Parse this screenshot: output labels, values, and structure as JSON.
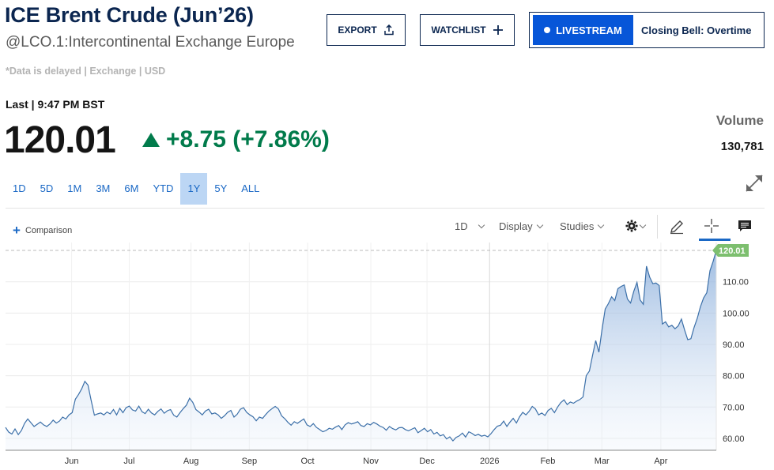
{
  "header": {
    "title": "ICE Brent Crude (Jun’26)",
    "subtitle": "@LCO.1:Intercontinental Exchange Europe",
    "delayed": "*Data is delayed | Exchange | USD"
  },
  "actions": {
    "export_label": "EXPORT",
    "watchlist_label": "WATCHLIST",
    "livestream_label": "LIVESTREAM",
    "live_show": "Closing Bell: Overtime"
  },
  "quote": {
    "last_label": "Last | 9:47 PM BST",
    "price": "120.01",
    "change": "+8.75 (+7.86%)",
    "volume_label": "Volume",
    "volume_value": "130,781"
  },
  "ranges": [
    {
      "label": "1D",
      "active": false
    },
    {
      "label": "5D",
      "active": false
    },
    {
      "label": "1M",
      "active": false
    },
    {
      "label": "3M",
      "active": false
    },
    {
      "label": "6M",
      "active": false
    },
    {
      "label": "YTD",
      "active": false
    },
    {
      "label": "1Y",
      "active": true
    },
    {
      "label": "5Y",
      "active": false
    },
    {
      "label": "ALL",
      "active": false
    }
  ],
  "toolbar": {
    "comparison_label": "Comparison",
    "interval_label": "1D",
    "display_label": "Display",
    "studies_label": "Studies"
  },
  "colors": {
    "accent": "#1a68c5",
    "positive": "#017b4b",
    "navy": "#0b2650",
    "line": "#3b6fa8",
    "price_tag": "#7dbf6f"
  },
  "chart_data": {
    "type": "area",
    "y_ticks": [
      "60.00",
      "70.00",
      "80.00",
      "90.00",
      "100.00",
      "110.00"
    ],
    "y_range": [
      56.2,
      120.01
    ],
    "x_ticks": [
      "Jun",
      "Jul",
      "Aug",
      "Sep",
      "Oct",
      "Nov",
      "Dec",
      "2026",
      "Feb",
      "Mar",
      "Apr"
    ],
    "last_value": "120.01",
    "series": [
      {
        "values": [
          63.5,
          62.0,
          61.4,
          63.0,
          61.2,
          62.5,
          64.8,
          66.2,
          65.0,
          63.8,
          64.5,
          65.2,
          64.3,
          63.8,
          64.6,
          65.8,
          64.9,
          65.5,
          66.8,
          66.2,
          67.5,
          68.2,
          72.5,
          74.0,
          75.8,
          78.2,
          77.0,
          72.0,
          67.4,
          67.8,
          68.1,
          67.5,
          68.4,
          67.8,
          69.2,
          67.5,
          69.6,
          68.2,
          69.8,
          70.3,
          69.1,
          68.7,
          70.3,
          68.5,
          67.9,
          69.3,
          68.1,
          67.5,
          68.6,
          69.4,
          68.0,
          68.8,
          69.2,
          67.4,
          66.8,
          68.2,
          69.5,
          70.6,
          72.8,
          71.5,
          69.2,
          68.4,
          67.5,
          68.7,
          69.3,
          67.8,
          68.1,
          67.5,
          66.4,
          67.2,
          68.3,
          68.9,
          66.8,
          67.7,
          69.3,
          69.8,
          68.3,
          67.5,
          66.9,
          65.6,
          66.8,
          66.4,
          67.6,
          68.7,
          69.5,
          70.2,
          69.4,
          67.2,
          66.3,
          65.1,
          64.2,
          65.3,
          64.8,
          65.5,
          66.2,
          64.3,
          63.8,
          64.7,
          63.5,
          62.8,
          62.1,
          62.5,
          63.2,
          62.9,
          63.6,
          64.1,
          62.8,
          64.3,
          65.0,
          64.6,
          64.9,
          65.3,
          64.1,
          63.8,
          64.7,
          64.3,
          65.1,
          64.6,
          63.9,
          63.5,
          62.6,
          63.8,
          63.1,
          62.7,
          63.4,
          63.5,
          62.8,
          62.4,
          62.9,
          63.4,
          61.8,
          62.5,
          63.2,
          62.1,
          62.8,
          61.4,
          61.9,
          60.8,
          61.2,
          59.8,
          60.5,
          59.2,
          60.3,
          60.8,
          61.7,
          60.4,
          62.1,
          61.6,
          60.9,
          61.3,
          60.7,
          61.0,
          60.5,
          61.5,
          62.8,
          63.9,
          64.2,
          65.5,
          63.8,
          65.2,
          66.4,
          64.9,
          66.9,
          68.3,
          67.5,
          68.6,
          70.2,
          69.4,
          67.5,
          68.1,
          67.3,
          68.9,
          69.6,
          68.2,
          70.0,
          71.4,
          72.3,
          70.8,
          71.6,
          71.2,
          71.9,
          72.4,
          73.2,
          80.0,
          81.5,
          86.5,
          91.2,
          87.5,
          94.8,
          101.3,
          103.0,
          105.2,
          104.0,
          107.8,
          108.5,
          109.0,
          104.5,
          103.2,
          107.0,
          109.8,
          104.2,
          102.8,
          115.0,
          111.5,
          109.4,
          109.6,
          108.8,
          96.5,
          97.2,
          95.6,
          96.1,
          95.0,
          95.9,
          98.1,
          94.6,
          91.5,
          91.8,
          95.4,
          98.3,
          102.0,
          104.8,
          106.5,
          113.5,
          116.5,
          120.01
        ]
      }
    ]
  }
}
